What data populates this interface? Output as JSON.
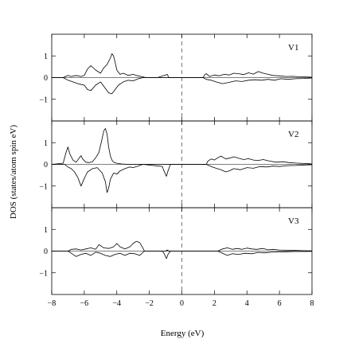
{
  "chart_data": {
    "type": "line",
    "xlabel": "Energy (eV)",
    "ylabel": "DOS (states/atom spin eV)",
    "xlim": [
      -8,
      8
    ],
    "x_ticks": [
      -8,
      -6,
      -4,
      -2,
      0,
      2,
      4,
      6,
      8
    ],
    "x_tick_labels": [
      "−8",
      "−6",
      "−4",
      "−2",
      "0",
      "2",
      "4",
      "6",
      "8"
    ],
    "fermi_level": 0,
    "panels": [
      {
        "label": "V1",
        "ylim": [
          -2,
          2
        ],
        "y_ticks": [
          -1,
          0,
          1
        ],
        "y_tick_labels": [
          "−1",
          "0",
          "1"
        ],
        "series": [
          {
            "x": [
              -8,
              -7.3,
              -7.0,
              -6.8,
              -6.5,
              -6.2,
              -6.0,
              -5.8,
              -5.6,
              -5.3,
              -5.0,
              -4.8,
              -4.6,
              -4.4,
              -4.3,
              -4.2,
              -4.1,
              -4.0,
              -3.8,
              -3.6,
              -3.3,
              -3.0,
              -2.8,
              -2.5,
              -2.2,
              -1.5,
              -1.0,
              -0.9,
              -0.8,
              0,
              1.3,
              1.4,
              1.5,
              1.7,
              2.0,
              2.3,
              2.6,
              2.9,
              3.2,
              3.5,
              3.8,
              4.1,
              4.4,
              4.7,
              5.0,
              5.3,
              5.6,
              6.0,
              6.4,
              6.8,
              7.2,
              7.6,
              8.0
            ],
            "y": [
              0,
              0,
              0.1,
              0.05,
              0.1,
              0.05,
              0.1,
              0.4,
              0.55,
              0.35,
              0.2,
              0.45,
              0.6,
              0.9,
              1.1,
              1.0,
              0.7,
              0.35,
              0.15,
              0.2,
              0.1,
              0.15,
              0.1,
              0.05,
              0,
              0,
              0.12,
              0.15,
              0,
              0,
              0,
              0.12,
              0.18,
              0.05,
              0.12,
              0.08,
              0.15,
              0.12,
              0.2,
              0.18,
              0.14,
              0.22,
              0.16,
              0.28,
              0.2,
              0.15,
              0.1,
              0.08,
              0.05,
              0.06,
              0.04,
              0.03,
              0.02
            ]
          },
          {
            "x": [
              -8,
              -7.3,
              -7.0,
              -6.7,
              -6.3,
              -6.0,
              -5.8,
              -5.6,
              -5.3,
              -5.0,
              -4.7,
              -4.5,
              -4.3,
              -4.1,
              -3.9,
              -3.6,
              -3.3,
              -3.0,
              -2.7,
              -2.4,
              0,
              1.3,
              1.5,
              1.8,
              2.1,
              2.5,
              2.9,
              3.3,
              3.7,
              4.1,
              4.5,
              4.9,
              5.3,
              5.7,
              6.1,
              6.5,
              7.0,
              7.5,
              8.0
            ],
            "y": [
              0,
              0,
              -0.12,
              -0.2,
              -0.3,
              -0.35,
              -0.55,
              -0.6,
              -0.35,
              -0.2,
              -0.5,
              -0.7,
              -0.75,
              -0.55,
              -0.35,
              -0.2,
              -0.12,
              -0.15,
              -0.06,
              0,
              0,
              0,
              -0.08,
              -0.12,
              -0.2,
              -0.28,
              -0.22,
              -0.15,
              -0.18,
              -0.12,
              -0.1,
              -0.12,
              -0.08,
              -0.12,
              -0.05,
              -0.08,
              -0.05,
              -0.04,
              -0.02
            ]
          }
        ]
      },
      {
        "label": "V2",
        "ylim": [
          -2,
          2
        ],
        "y_ticks": [
          -1,
          0,
          1
        ],
        "y_tick_labels": [
          "−1",
          "0",
          "1"
        ],
        "series": [
          {
            "x": [
              -8,
              -7.3,
              -7.1,
              -7.0,
              -6.9,
              -6.7,
              -6.5,
              -6.3,
              -6.2,
              -6.1,
              -5.9,
              -5.7,
              -5.5,
              -5.3,
              -5.1,
              -4.9,
              -4.8,
              -4.7,
              -4.6,
              -4.5,
              -4.4,
              -4.3,
              -4.2,
              -4.0,
              -3.7,
              -3.3,
              -3.0,
              -2.6,
              -2.2,
              0,
              1.5,
              1.6,
              1.8,
              2.0,
              2.2,
              2.4,
              2.7,
              3.0,
              3.2,
              3.5,
              3.8,
              4.1,
              4.4,
              4.7,
              5.0,
              5.4,
              5.8,
              6.2,
              6.6,
              7.0,
              7.5,
              7.8,
              8.0
            ],
            "y": [
              0,
              0.05,
              0.6,
              0.8,
              0.5,
              0.2,
              0.1,
              0.3,
              0.4,
              0.25,
              0.1,
              0.08,
              0.12,
              0.3,
              0.55,
              1.2,
              1.55,
              1.65,
              1.4,
              0.8,
              0.4,
              0.2,
              0.1,
              0.05,
              0.02,
              0,
              0,
              0,
              0,
              0,
              0,
              0.15,
              0.25,
              0.2,
              0.3,
              0.38,
              0.25,
              0.3,
              0.35,
              0.28,
              0.22,
              0.26,
              0.2,
              0.18,
              0.22,
              0.15,
              0.1,
              0.12,
              0.08,
              0.06,
              0.04,
              0.03,
              0.02
            ]
          },
          {
            "x": [
              -8,
              -7.2,
              -7.0,
              -6.8,
              -6.6,
              -6.4,
              -6.2,
              -6.0,
              -5.8,
              -5.5,
              -5.2,
              -4.9,
              -4.7,
              -4.6,
              -4.5,
              -4.4,
              -4.2,
              -4.0,
              -3.8,
              -3.5,
              -3.2,
              -3.0,
              -2.7,
              -2.4,
              -1.2,
              -1.1,
              -0.95,
              -0.85,
              -0.7,
              0,
              1.5,
              1.8,
              2.1,
              2.4,
              2.7,
              2.9,
              3.2,
              3.6,
              4.0,
              4.4,
              4.8,
              5.2,
              5.6,
              6.0,
              6.5,
              7.0,
              7.5,
              8.0
            ],
            "y": [
              0,
              0,
              -0.12,
              -0.2,
              -0.35,
              -0.6,
              -1.0,
              -0.65,
              -0.35,
              -0.2,
              -0.15,
              -0.4,
              -0.8,
              -1.3,
              -1.1,
              -0.7,
              -0.4,
              -0.45,
              -0.3,
              -0.2,
              -0.12,
              -0.15,
              -0.08,
              0,
              -0.1,
              -0.3,
              -0.55,
              -0.3,
              0,
              0,
              0,
              -0.1,
              -0.18,
              -0.25,
              -0.35,
              -0.3,
              -0.2,
              -0.25,
              -0.15,
              -0.18,
              -0.1,
              -0.12,
              -0.08,
              -0.1,
              -0.06,
              -0.05,
              -0.03,
              -0.02
            ]
          }
        ]
      },
      {
        "label": "V3",
        "ylim": [
          -2,
          2
        ],
        "y_ticks": [
          -1,
          0,
          1
        ],
        "y_tick_labels": [
          "−1",
          "0",
          "1"
        ],
        "series": [
          {
            "x": [
              -8,
              -7.0,
              -6.8,
              -6.5,
              -6.2,
              -5.9,
              -5.6,
              -5.3,
              -5.1,
              -4.8,
              -4.5,
              -4.2,
              -4.0,
              -3.8,
              -3.5,
              -3.2,
              -3.0,
              -2.8,
              -2.6,
              -2.4,
              -2.3,
              -1.0,
              -0.9,
              -0.8,
              0,
              2.2,
              2.5,
              2.8,
              3.1,
              3.4,
              3.7,
              4.0,
              4.3,
              4.6,
              5.0,
              5.3,
              5.6,
              6.0,
              6.5,
              7.0,
              7.5,
              8.0
            ],
            "y": [
              0,
              0,
              0.08,
              0.1,
              0.05,
              0.1,
              0.15,
              0.08,
              0.3,
              0.15,
              0.12,
              0.2,
              0.35,
              0.2,
              0.1,
              0.2,
              0.35,
              0.45,
              0.4,
              0.15,
              0,
              0,
              0.05,
              0,
              0,
              0,
              0.1,
              0.15,
              0.08,
              0.12,
              0.08,
              0.14,
              0.1,
              0.08,
              0.12,
              0.06,
              0.08,
              0.05,
              0.04,
              0.03,
              0.02,
              0.01
            ]
          },
          {
            "x": [
              -8,
              -7.0,
              -6.8,
              -6.5,
              -6.2,
              -5.9,
              -5.6,
              -5.3,
              -5.0,
              -4.7,
              -4.4,
              -4.1,
              -3.8,
              -3.5,
              -3.2,
              -2.9,
              -2.6,
              -2.3,
              -1.2,
              -1.1,
              -0.95,
              -0.85,
              -0.7,
              0,
              2.2,
              2.5,
              2.8,
              3.1,
              3.5,
              3.9,
              4.3,
              4.7,
              5.1,
              5.5,
              6.0,
              6.5,
              7.0,
              7.5,
              8.0
            ],
            "y": [
              0,
              0,
              -0.1,
              -0.25,
              -0.15,
              -0.1,
              -0.2,
              -0.05,
              -0.1,
              -0.2,
              -0.25,
              -0.15,
              -0.1,
              -0.2,
              -0.1,
              -0.12,
              -0.2,
              0,
              0,
              -0.1,
              -0.35,
              -0.15,
              0,
              0,
              0,
              -0.1,
              -0.2,
              -0.12,
              -0.15,
              -0.1,
              -0.12,
              -0.06,
              -0.08,
              -0.05,
              -0.04,
              -0.03,
              -0.02,
              -0.02,
              -0.01
            ]
          }
        ]
      }
    ],
    "line_color": "#000000",
    "fermi_line_color": "#555555",
    "grid": false,
    "legend": "none"
  }
}
